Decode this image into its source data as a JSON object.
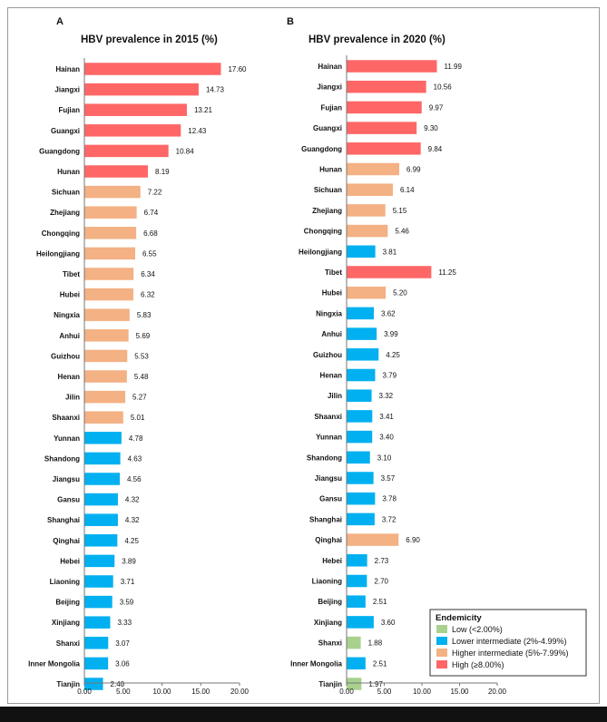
{
  "colors": {
    "low": "#a9d18e",
    "lower": "#00b0f0",
    "higher": "#f4b183",
    "high": "#ff6666"
  },
  "chart_data": [
    {
      "type": "bar",
      "orientation": "horizontal",
      "panel": "A",
      "title": "HBV prevalence in 2015 (%)",
      "xlim": [
        0,
        20
      ],
      "ticks": [
        "0.00",
        "5.00",
        "10.00",
        "15.00",
        "20.00"
      ],
      "categories": [
        "Hainan",
        "Jiangxi",
        "Fujian",
        "Guangxi",
        "Guangdong",
        "Hunan",
        "Sichuan",
        "Zhejiang",
        "Chongqing",
        "Heilongjiang",
        "Tibet",
        "Hubei",
        "Ningxia",
        "Anhui",
        "Guizhou",
        "Henan",
        "Jilin",
        "Shaanxi",
        "Yunnan",
        "Shandong",
        "Jiangsu",
        "Gansu",
        "Shanghai",
        "Qinghai",
        "Hebei",
        "Liaoning",
        "Beijing",
        "Xinjiang",
        "Shanxi",
        "Inner Mongolia",
        "Tianjin"
      ],
      "values": [
        17.6,
        14.73,
        13.21,
        12.43,
        10.84,
        8.19,
        7.22,
        6.74,
        6.68,
        6.55,
        6.34,
        6.32,
        5.83,
        5.69,
        5.53,
        5.48,
        5.27,
        5.01,
        4.78,
        4.63,
        4.56,
        4.32,
        4.32,
        4.25,
        3.89,
        3.71,
        3.59,
        3.33,
        3.07,
        3.06,
        2.4
      ],
      "labels": [
        "17.60",
        "14.73",
        "13.21",
        "12.43",
        "10.84",
        "8.19",
        "7.22",
        "6.74",
        "6.68",
        "6.55",
        "6.34",
        "6.32",
        "5.83",
        "5.69",
        "5.53",
        "5.48",
        "5.27",
        "5.01",
        "4.78",
        "4.63",
        "4.56",
        "4.32",
        "4.32",
        "4.25",
        "3.89",
        "3.71",
        "3.59",
        "3.33",
        "3.07",
        "3.06",
        "2.40"
      ]
    },
    {
      "type": "bar",
      "orientation": "horizontal",
      "panel": "B",
      "title": "HBV prevalence in 2020 (%)",
      "xlim": [
        0,
        20
      ],
      "ticks": [
        "0.00",
        "5.00",
        "10.00",
        "15.00",
        "20.00"
      ],
      "categories": [
        "Hainan",
        "Jiangxi",
        "Fujian",
        "Guangxi",
        "Guangdong",
        "Hunan",
        "Sichuan",
        "Zhejiang",
        "Chongqing",
        "Heilongjiang",
        "Tibet",
        "Hubei",
        "Ningxia",
        "Anhui",
        "Guizhou",
        "Henan",
        "Jilin",
        "Shaanxi",
        "Yunnan",
        "Shandong",
        "Jiangsu",
        "Gansu",
        "Shanghai",
        "Qinghai",
        "Hebei",
        "Liaoning",
        "Beijing",
        "Xinjiang",
        "Shanxi",
        "Inner Mongolia",
        "Tianjin"
      ],
      "values": [
        11.99,
        10.56,
        9.97,
        9.3,
        9.84,
        6.99,
        6.14,
        5.15,
        5.46,
        3.81,
        11.25,
        5.2,
        3.62,
        3.99,
        4.25,
        3.79,
        3.32,
        3.41,
        3.4,
        3.1,
        3.57,
        3.78,
        3.72,
        6.9,
        2.73,
        2.7,
        2.51,
        3.6,
        1.88,
        2.51,
        1.97
      ],
      "labels": [
        "11.99",
        "10.56",
        "9.97",
        "9.30",
        "9.84",
        "6.99",
        "6.14",
        "5.15",
        "5.46",
        "3.81",
        "11.25",
        "5.20",
        "3.62",
        "3.99",
        "4.25",
        "3.79",
        "3.32",
        "3.41",
        "3.40",
        "3.10",
        "3.57",
        "3.78",
        "3.72",
        "6.90",
        "2.73",
        "2.70",
        "2.51",
        "3.60",
        "1.88",
        "2.51",
        "1.97"
      ],
      "legend": {
        "title": "Endemicity",
        "position": "bottom-right",
        "items": [
          {
            "key": "low",
            "label": "Low (<2.00%)"
          },
          {
            "key": "lower",
            "label": "Lower intermediate (2%-4.99%)"
          },
          {
            "key": "higher",
            "label": "Higher intermediate (5%-7.99%)"
          },
          {
            "key": "high",
            "label": "High (≥8.00%)"
          }
        ]
      }
    }
  ]
}
